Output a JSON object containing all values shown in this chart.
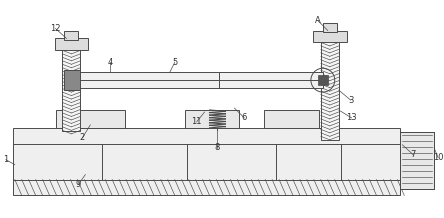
{
  "bg_color": "#ffffff",
  "line_color": "#4a4a4a",
  "label_color": "#333333",
  "fig_w": 4.44,
  "fig_h": 2.18,
  "dpi": 100
}
